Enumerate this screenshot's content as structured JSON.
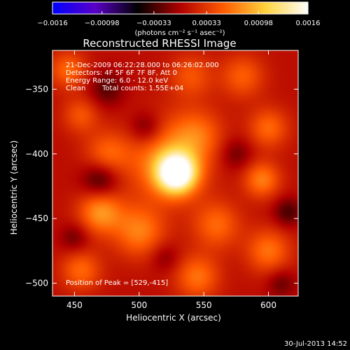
{
  "chart_data": {
    "type": "heatmap",
    "title": "Reconstructed RHESSI Image",
    "xlabel": "Heliocentric X (arcsec)",
    "ylabel": "Heliocentric Y (arcsec)",
    "xlim": [
      433,
      623
    ],
    "ylim": [
      -510,
      -320
    ],
    "x_ticks": [
      450,
      500,
      550,
      600
    ],
    "y_ticks": [
      -350,
      -400,
      -450,
      -500
    ],
    "x_tick_labels": [
      "450",
      "500",
      "550",
      "600"
    ],
    "y_tick_labels": [
      "−350",
      "−400",
      "−450",
      "−500"
    ],
    "colorbar": {
      "range": [
        -0.0016,
        0.0016
      ],
      "ticks": [
        -0.0016,
        -0.00098,
        -0.00033,
        0.00033,
        0.00098,
        0.0016
      ],
      "tick_labels": [
        "−0.0016",
        "−0.00098",
        "−0.00033",
        "0.00033",
        "0.00098",
        "0.0016"
      ],
      "unit_label": "(photons cm⁻² s⁻¹ asec⁻²)",
      "colors": [
        "#0000ff",
        "#5a00c8",
        "#000000",
        "#b00000",
        "#ff5a00",
        "#ffd23c",
        "#ffffff"
      ]
    },
    "annotations": {
      "time": "21-Dec-2009 06:22:28.000 to 06:26:02.000",
      "detectors": "Detectors: 4F 5F 6F 7F 8F, Att 0",
      "energy": "Energy Range: 6.0 - 12.0 keV",
      "clean": "Clean",
      "counts": "Total counts: 1.55E+04",
      "peak": "Position of Peak = [529,-415]"
    },
    "peak": {
      "x": 529,
      "y": -415,
      "value": 0.0016
    },
    "sources": [
      {
        "x": 529,
        "y": -415,
        "amp": 0.0016,
        "sigma": 11
      },
      {
        "x": 520,
        "y": -405,
        "amp": 0.0006,
        "sigma": 22
      },
      {
        "x": 545,
        "y": -385,
        "amp": 0.00045,
        "sigma": 14
      },
      {
        "x": 475,
        "y": -400,
        "amp": 0.00045,
        "sigma": 12
      },
      {
        "x": 470,
        "y": -445,
        "amp": 0.0007,
        "sigma": 12
      },
      {
        "x": 500,
        "y": -460,
        "amp": 0.0006,
        "sigma": 14
      },
      {
        "x": 560,
        "y": -455,
        "amp": 0.0005,
        "sigma": 13
      },
      {
        "x": 545,
        "y": -495,
        "amp": 0.00055,
        "sigma": 12
      },
      {
        "x": 455,
        "y": -490,
        "amp": 0.0005,
        "sigma": 11
      },
      {
        "x": 600,
        "y": -475,
        "amp": 0.00055,
        "sigma": 12
      },
      {
        "x": 595,
        "y": -420,
        "amp": 0.0006,
        "sigma": 10
      },
      {
        "x": 600,
        "y": -380,
        "amp": 0.0005,
        "sigma": 11
      },
      {
        "x": 580,
        "y": -340,
        "amp": 0.00045,
        "sigma": 12
      },
      {
        "x": 540,
        "y": -340,
        "amp": 0.0004,
        "sigma": 12
      },
      {
        "x": 445,
        "y": -335,
        "amp": 0.0005,
        "sigma": 10
      },
      {
        "x": 455,
        "y": -370,
        "amp": 0.0004,
        "sigma": 10
      },
      {
        "x": 475,
        "y": -350,
        "amp": -0.00035,
        "sigma": 10
      },
      {
        "x": 470,
        "y": -420,
        "amp": -0.0005,
        "sigma": 10
      },
      {
        "x": 505,
        "y": -380,
        "amp": -0.0004,
        "sigma": 9
      },
      {
        "x": 575,
        "y": -400,
        "amp": -0.0003,
        "sigma": 9
      },
      {
        "x": 615,
        "y": -445,
        "amp": -0.0004,
        "sigma": 8
      },
      {
        "x": 450,
        "y": -465,
        "amp": -0.0003,
        "sigma": 8
      },
      {
        "x": 520,
        "y": -480,
        "amp": -0.00025,
        "sigma": 8
      },
      {
        "x": 610,
        "y": -500,
        "amp": -0.0003,
        "sigma": 8
      }
    ]
  },
  "footer": {
    "date": "30-Jul-2013 14:52"
  }
}
